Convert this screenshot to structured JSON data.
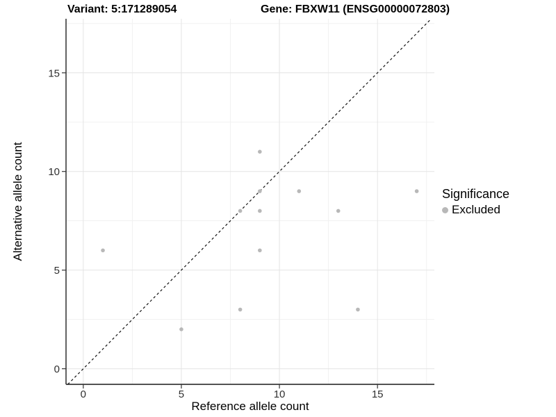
{
  "header": {
    "left_title": "Variant: 5:171289054",
    "right_title": "Gene: FBXW11 (ENSG00000072803)"
  },
  "chart_data": {
    "type": "scatter",
    "title": "Variant: 5:171289054   |   Gene: FBXW11 (ENSG00000072803)",
    "xlabel": "Reference allele count",
    "ylabel": "Alternative allele count",
    "xlim": [
      -0.88,
      17.9
    ],
    "ylim": [
      -0.79,
      17.74
    ],
    "x_ticks": [
      0,
      5,
      10,
      15
    ],
    "y_ticks": [
      0,
      5,
      10,
      15
    ],
    "x_minor_ticks": [
      2.5,
      7.5,
      12.5,
      17.5
    ],
    "y_minor_ticks": [
      2.5,
      7.5,
      12.5,
      17.5
    ],
    "grid": true,
    "identity_line": {
      "equation": "y = x",
      "style": "dashed",
      "color": "#111111"
    },
    "series": [
      {
        "name": "Excluded",
        "color": "#b8b8b8",
        "points": [
          [
            1,
            6
          ],
          [
            5,
            2
          ],
          [
            8,
            3
          ],
          [
            8,
            8
          ],
          [
            9,
            6
          ],
          [
            9,
            8
          ],
          [
            9,
            9
          ],
          [
            9,
            11
          ],
          [
            11,
            9
          ],
          [
            13,
            8
          ],
          [
            14,
            3
          ],
          [
            17,
            9
          ]
        ]
      }
    ],
    "legend": {
      "title": "Significance",
      "position": "right",
      "entries": [
        {
          "label": "Excluded",
          "color": "#b8b8b8"
        }
      ]
    }
  },
  "palette": {
    "background": "#ffffff",
    "axis_line": "#3a3a3a",
    "tick_mark": "#333333",
    "grid_major": "#e4e4e4",
    "grid_minor": "#f1f1f1",
    "point": "#b8b8b8",
    "dashed_line": "#111111",
    "text": "#000000",
    "tick_text": "#2f2f2f"
  }
}
